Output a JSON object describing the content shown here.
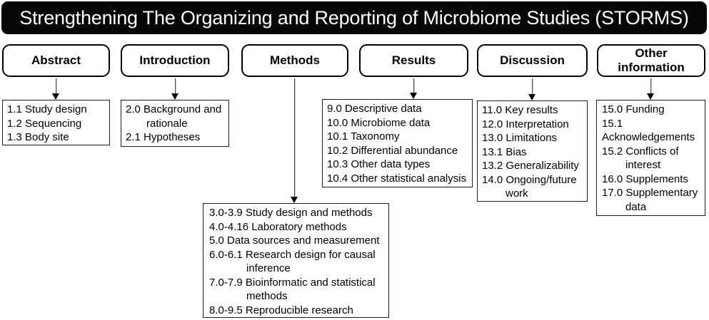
{
  "title": "Strengthening The Organizing and Reporting of Microbiome Studies (STORMS)",
  "sections": [
    {
      "label": "Abstract",
      "items": [
        "1.1 Study design",
        "1.2 Sequencing",
        "1.3 Body site"
      ]
    },
    {
      "label": "Introduction",
      "items": [
        "2.0 Background and rationale",
        "2.1 Hypotheses"
      ]
    },
    {
      "label": "Methods",
      "items": [
        "3.0-3.9 Study design and methods",
        "4.0-4.16 Laboratory methods",
        "5.0 Data sources and measurement",
        "6.0-6.1 Research design for causal inference",
        "7.0-7.9 Bioinformatic and statistical methods",
        "8.0-9.5 Reproducible research"
      ]
    },
    {
      "label": "Results",
      "items": [
        "9.0 Descriptive data",
        "10.0 Microbiome data",
        "10.1 Taxonomy",
        "10.2 Differential abundance",
        "10.3 Other data types",
        "10.4 Other statistical analysis"
      ]
    },
    {
      "label": "Discussion",
      "items": [
        "11.0 Key results",
        "12.0 Interpretation",
        "13.0 Limitations",
        "13.1 Bias",
        "13.2 Generalizability",
        "14.0 Ongoing/future work"
      ]
    },
    {
      "label": "Other information",
      "items": [
        "15.0 Funding",
        "15.1 Acknowledgements",
        "15.2 Conflicts of interest",
        "16.0 Supplements",
        "17.0 Supplementary data"
      ]
    }
  ]
}
